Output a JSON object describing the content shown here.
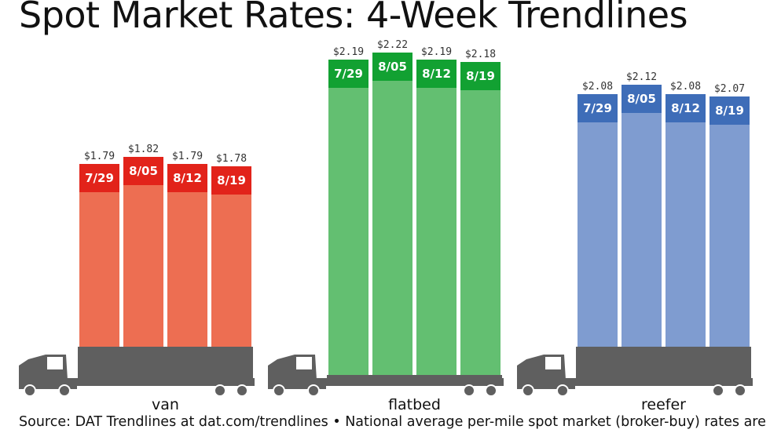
{
  "chart_data": {
    "type": "bar",
    "title": "Spot Market Rates: 4-Week Trendlines",
    "source": "Source: DAT Trendlines at dat.com/trendlines • National average per-mile spot market (broker-buy) rates are",
    "categories": [
      "7/29",
      "8/05",
      "8/12",
      "8/19"
    ],
    "value_labels_format": "$",
    "series": [
      {
        "name": "van",
        "values": [
          1.79,
          1.82,
          1.79,
          1.78
        ],
        "labels": [
          "$1.79",
          "$1.82",
          "$1.79",
          "$1.78"
        ],
        "color": "#ED6E52",
        "label_band_color": "#E2231A"
      },
      {
        "name": "flatbed",
        "values": [
          2.19,
          2.22,
          2.19,
          2.18
        ],
        "labels": [
          "$2.19",
          "$2.22",
          "$2.19",
          "$2.18"
        ],
        "color": "#63BF71",
        "label_band_color": "#12A132"
      },
      {
        "name": "reefer",
        "values": [
          2.08,
          2.12,
          2.08,
          2.07
        ],
        "labels": [
          "$2.08",
          "$2.12",
          "$2.08",
          "$2.07"
        ],
        "color": "#7F9CD0",
        "label_band_color": "#3E6DB8"
      }
    ],
    "truck_color": "#5F5F5F",
    "grid": false,
    "legend": "none"
  }
}
